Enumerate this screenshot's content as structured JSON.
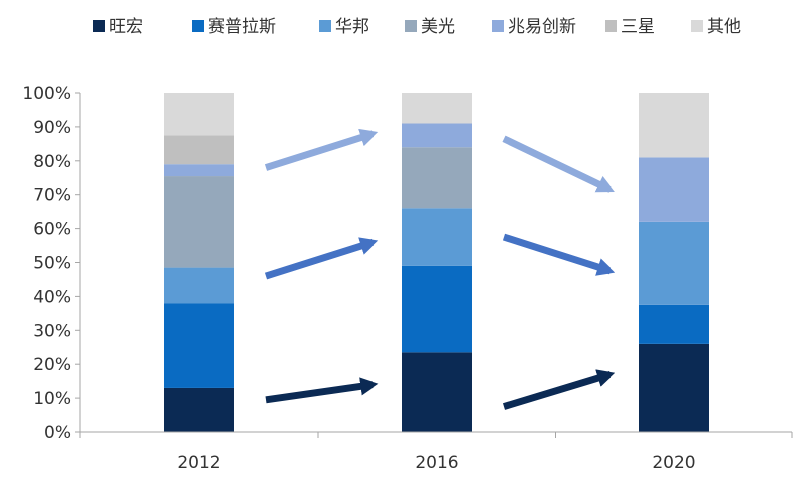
{
  "chart_data": {
    "type": "bar",
    "stacked": true,
    "categories": [
      "2012",
      "2016",
      "2020"
    ],
    "series": [
      {
        "name": "旺宏",
        "color": "#0b2a54",
        "values": [
          13,
          23.5,
          26
        ]
      },
      {
        "name": "赛普拉斯",
        "color": "#0a6bc2",
        "values": [
          25,
          25.5,
          11.5
        ]
      },
      {
        "name": "华邦",
        "color": "#5b9bd5",
        "values": [
          10.5,
          17,
          24.5
        ]
      },
      {
        "name": "美光",
        "color": "#95a8bb",
        "values": [
          27,
          18,
          0
        ]
      },
      {
        "name": "兆易创新",
        "color": "#8eaadc",
        "values": [
          3.5,
          7,
          19
        ]
      },
      {
        "name": "三星",
        "color": "#bfbfbf",
        "values": [
          8.5,
          0,
          0
        ]
      },
      {
        "name": "其他",
        "color": "#d9d9d9",
        "values": [
          12.5,
          9,
          19
        ]
      }
    ],
    "y_ticks": [
      "0%",
      "10%",
      "20%",
      "30%",
      "40%",
      "50%",
      "60%",
      "70%",
      "80%",
      "90%",
      "100%"
    ],
    "ylim": [
      0,
      100
    ],
    "legend_position": "top",
    "arrows": [
      {
        "series": "旺宏",
        "color": "#0b2a54",
        "from_category": "2012",
        "to_category": "2016",
        "y": [
          9.5,
          14
        ]
      },
      {
        "series": "旺宏",
        "color": "#0b2a54",
        "from_category": "2016",
        "to_category": "2020",
        "y": [
          7.5,
          17
        ]
      },
      {
        "series": "赛普拉斯",
        "color": "#4472c4",
        "from_category": "2012",
        "to_category": "2016",
        "y": [
          46,
          56
        ]
      },
      {
        "series": "赛普拉斯",
        "color": "#4472c4",
        "from_category": "2016",
        "to_category": "2020",
        "y": [
          57.5,
          47.5
        ]
      },
      {
        "series": "兆易创新",
        "color": "#8eaadc",
        "from_category": "2012",
        "to_category": "2016",
        "y": [
          78,
          88
        ]
      },
      {
        "series": "兆易创新",
        "color": "#8eaadc",
        "from_category": "2016",
        "to_category": "2020",
        "y": [
          86.5,
          71.5
        ]
      }
    ]
  }
}
